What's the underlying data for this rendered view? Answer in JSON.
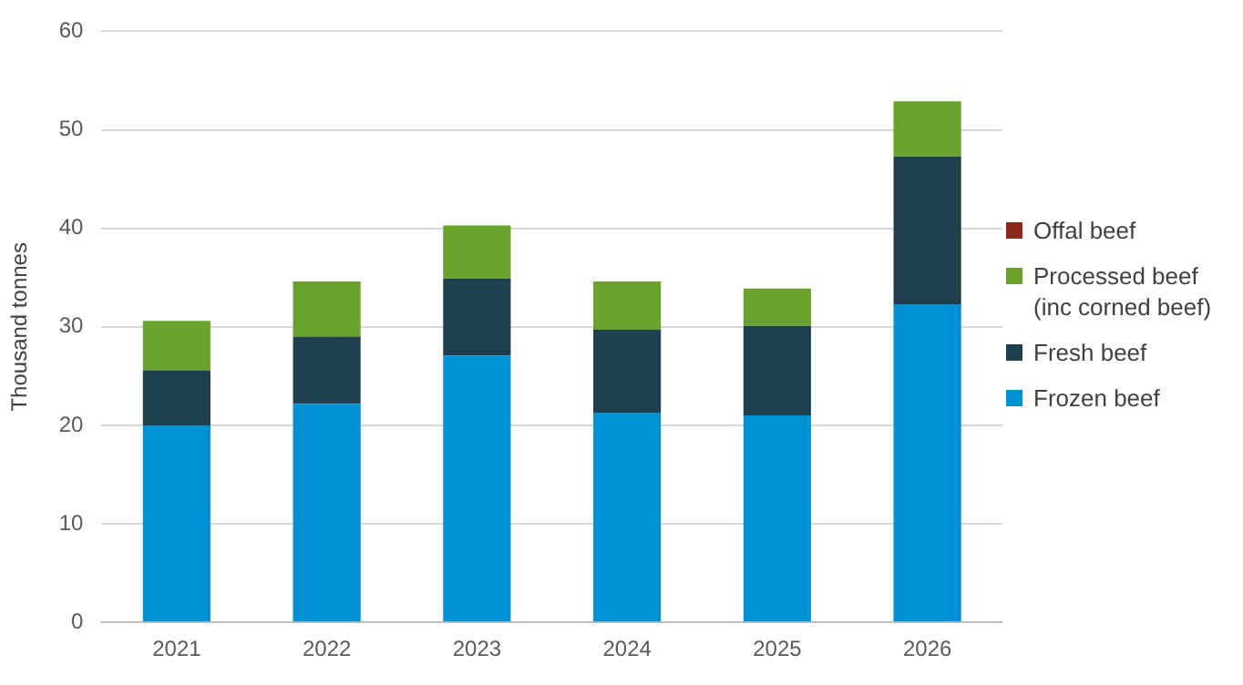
{
  "chart_data": {
    "type": "bar",
    "stacked": true,
    "ylabel": "Thousand tonnes",
    "categories": [
      "2021",
      "2022",
      "2023",
      "2024",
      "2025",
      "2026"
    ],
    "series": [
      {
        "name": "Frozen beef",
        "color": "#0090d4",
        "values": [
          20,
          22.2,
          27.1,
          21.3,
          21,
          32.3
        ]
      },
      {
        "name": "Fresh beef",
        "color": "#1f3f4f",
        "values": [
          5.6,
          6.8,
          7.8,
          8.4,
          9.1,
          15
        ]
      },
      {
        "name": "Processed beef (inc corned beef)",
        "color": "#6aa22e",
        "values": [
          5,
          5.6,
          5.4,
          4.9,
          3.8,
          5.6
        ]
      },
      {
        "name": "Offal beef",
        "color": "#8b2a1a",
        "values": [
          0,
          0,
          0,
          0,
          0,
          0
        ]
      }
    ],
    "ylim": [
      0,
      60
    ],
    "yticks": [
      0,
      10,
      20,
      30,
      40,
      50,
      60
    ],
    "grid": "y",
    "legend": "right"
  }
}
